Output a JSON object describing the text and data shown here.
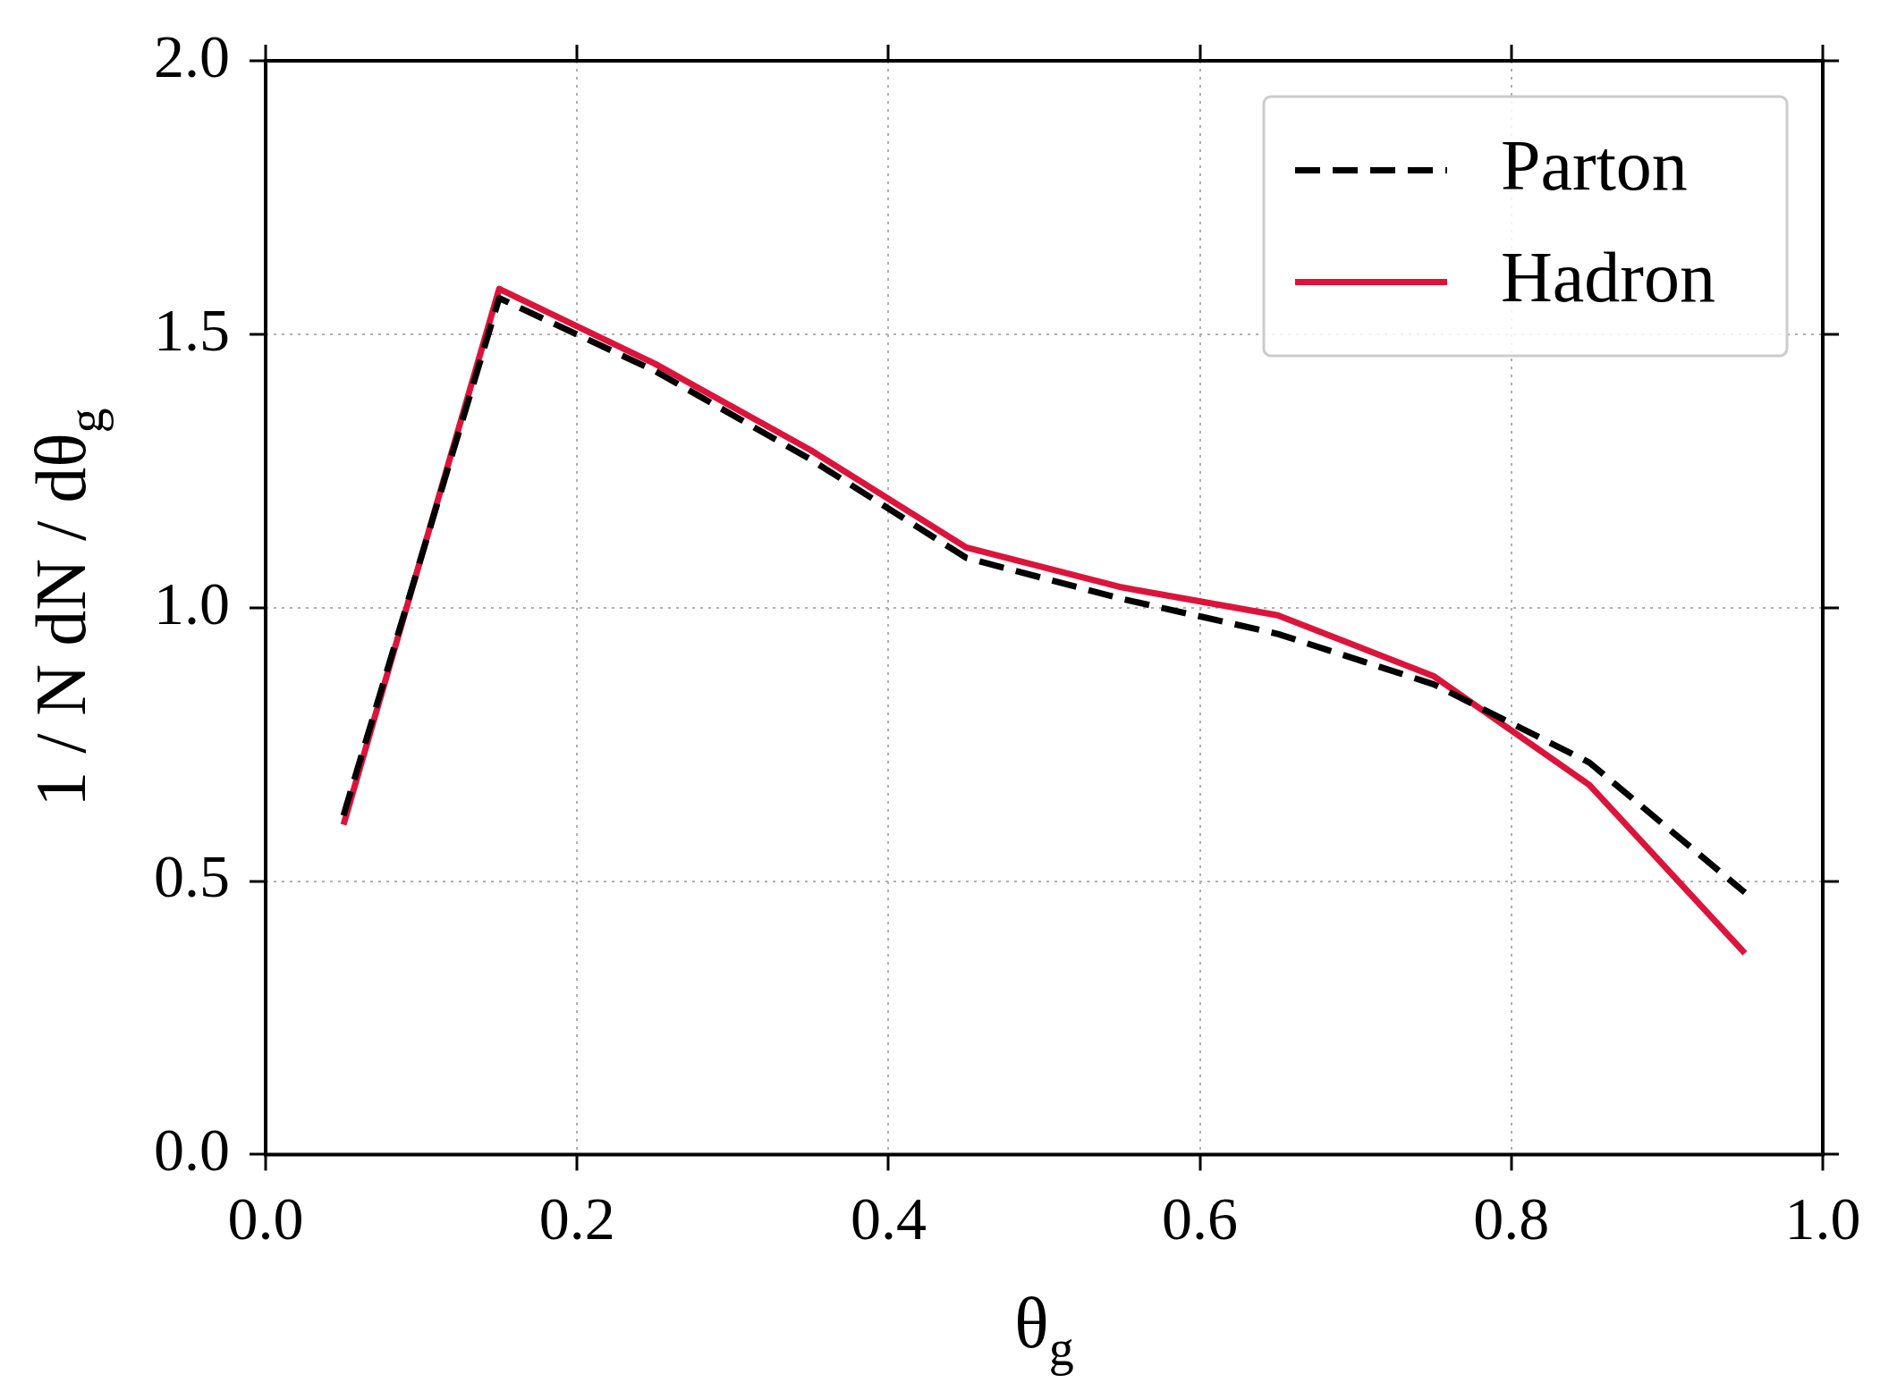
{
  "chart_data": {
    "type": "line",
    "xlabel": "θ$_{g}$",
    "ylabel": "1 / N dN / dθ$_{g}$",
    "x": [
      0.05,
      0.15,
      0.25,
      0.35,
      0.45,
      0.55,
      0.65,
      0.75,
      0.85,
      0.95
    ],
    "series": [
      {
        "name": "Parton",
        "color": "#000000",
        "line_style": "dashed",
        "values": [
          0.62,
          1.566,
          1.433,
          1.271,
          1.091,
          1.016,
          0.952,
          0.86,
          0.717,
          0.479
        ]
      },
      {
        "name": "Hadron",
        "color": "#dc143c",
        "line_style": "solid",
        "values": [
          0.603,
          1.583,
          1.446,
          1.288,
          1.11,
          1.037,
          0.986,
          0.875,
          0.676,
          0.368
        ]
      }
    ],
    "xlim": [
      0,
      1
    ],
    "xticks": [
      {
        "value": 0,
        "label": "0.0"
      },
      {
        "value": 0.2,
        "label": "0.2"
      },
      {
        "value": 0.4,
        "label": "0.4"
      },
      {
        "value": 0.6,
        "label": "0.6"
      },
      {
        "value": 0.8,
        "label": "0.8"
      },
      {
        "value": 1,
        "label": "1.0"
      }
    ],
    "ylim": [
      0,
      2
    ],
    "yticks": [
      {
        "value": 0,
        "label": "0.0"
      },
      {
        "value": 0.5,
        "label": "0.5"
      },
      {
        "value": 1,
        "label": "1.0"
      },
      {
        "value": 1.5,
        "label": "1.5"
      },
      {
        "value": 2,
        "label": "2.0"
      }
    ],
    "grid": true,
    "legend": "top right",
    "marker": "none"
  }
}
